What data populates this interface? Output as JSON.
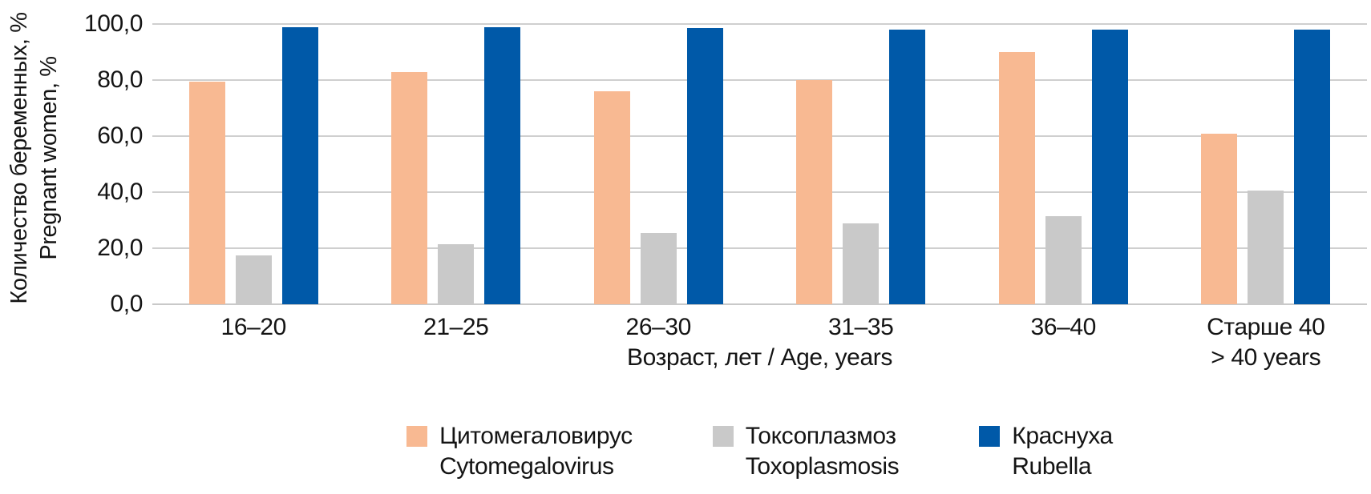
{
  "chart_data": {
    "type": "bar",
    "title": "",
    "y_axis": {
      "label_ru": "Количество беременных, %",
      "label_en": "Pregnant women, %",
      "ylim": [
        0,
        100
      ],
      "tick_step": 20,
      "tick_labels": [
        "0,0",
        "20,0",
        "40,0",
        "60,0",
        "80,0",
        "100,0"
      ],
      "grid": true
    },
    "x_axis": {
      "label": "Возраст, лет / Age, years"
    },
    "categories": [
      {
        "label": "16–20",
        "sublabel": ""
      },
      {
        "label": "21–25",
        "sublabel": ""
      },
      {
        "label": "26–30",
        "sublabel": ""
      },
      {
        "label": "31–35",
        "sublabel": ""
      },
      {
        "label": "36–40",
        "sublabel": ""
      },
      {
        "label": "Старше 40",
        "sublabel": "> 40 years"
      }
    ],
    "series": [
      {
        "key": "cytomegalovirus",
        "name_ru": "Цитомегаловирус",
        "name_en": "Cytomegalovirus",
        "color": "#F8B992",
        "values": [
          79.5,
          83,
          76,
          80,
          90,
          61
        ]
      },
      {
        "key": "toxoplasmosis",
        "name_ru": "Токсоплазмоз",
        "name_en": "Toxoplasmosis",
        "color": "#C9C9C9",
        "values": [
          17.5,
          21.5,
          25.5,
          29,
          31.5,
          40.5
        ]
      },
      {
        "key": "rubella",
        "name_ru": "Краснуха",
        "name_en": "Rubella",
        "color": "#0059A8",
        "values": [
          99,
          99,
          98.5,
          98,
          98,
          98
        ]
      }
    ],
    "legend_position": "bottom",
    "colors": {
      "gridline": "#CFCFCF",
      "baseline": "#C9C9C9",
      "text": "#141414",
      "background": "#FFFFFF"
    }
  }
}
